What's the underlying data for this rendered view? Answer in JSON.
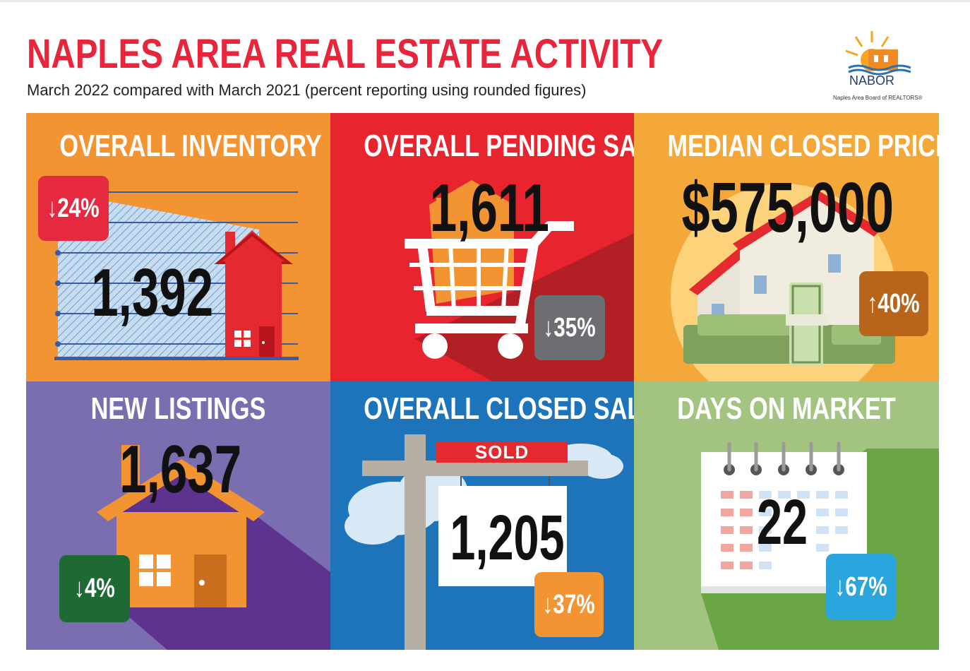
{
  "header": {
    "title": "NAPLES AREA REAL ESTATE ACTIVITY",
    "subtitle": "March 2022 compared with March 2021 (percent reporting using rounded figures)"
  },
  "logo": {
    "name": "NABOR",
    "tagline": "Naples Area Board of REALTORS®"
  },
  "panels": {
    "inventory": {
      "title": "OVERALL INVENTORY",
      "value": "1,392",
      "change": "↓24%",
      "color": "#f39433"
    },
    "pending": {
      "title": "OVERALL PENDING SALES",
      "value": "1,611",
      "change": "↓35%",
      "color": "#e8242e"
    },
    "median_price": {
      "title": "MEDIAN CLOSED PRICE",
      "value": "$575,000",
      "change": "↑40%",
      "color": "#f5a83a"
    },
    "new_listings": {
      "title": "NEW LISTINGS",
      "value": "1,637",
      "change": "↓4%",
      "color": "#7b6eb0"
    },
    "closed_sales": {
      "title": "OVERALL CLOSED SALES",
      "value": "1,205",
      "change": "↓37%",
      "sign": "SOLD",
      "color": "#1e74ba"
    },
    "days_on_market": {
      "title": "DAYS ON MARKET",
      "value": "22",
      "change": "↓67%",
      "color": "#a3c481"
    }
  }
}
